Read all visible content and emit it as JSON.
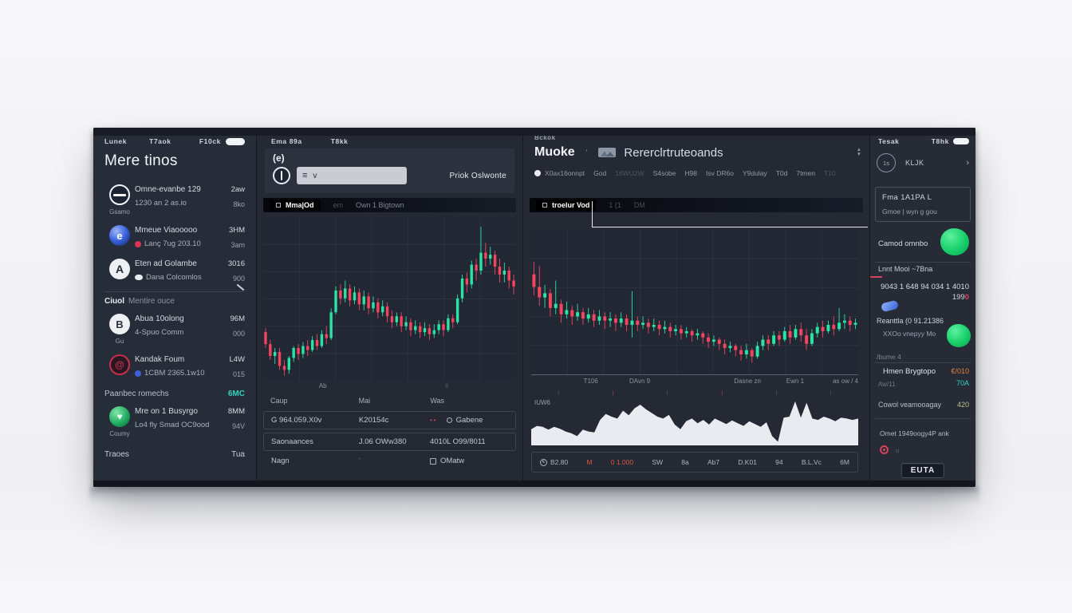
{
  "colors": {
    "up": "#2be3a4",
    "down": "#f4455e",
    "teal": "#2fd3c0",
    "green_blob": "#1fd873",
    "orange": "#e2813a",
    "red": "#d5455a",
    "blue": "#3a62d8",
    "panel_bg": "#242933"
  },
  "icons": {
    "swirl": "e",
    "triangle": "A",
    "sketch": "B",
    "dragon": "@",
    "leaf": "♥",
    "list": "≡",
    "filter": "v",
    "arrow": "›",
    "sort_up": "▲",
    "sort_down": "▼",
    "coin": "€",
    "tick": "|"
  },
  "left": {
    "tabs": [
      "Lunek",
      "T7aok",
      "F10ck"
    ],
    "title": "Mere tinos",
    "items": [
      {
        "sub": "Gsamo",
        "line1": "Omne-evanbe 129",
        "line2": "1230 an 2 as.io",
        "v1": "2aw",
        "v2": "8ko"
      },
      {
        "sub": "",
        "line1": "Mmeue Viaooooo",
        "line2": "Lanç 7ug 203.10",
        "v1": "3HM",
        "v2": "3am"
      },
      {
        "sub": "",
        "line1": "Eten ad Golambe",
        "line2": "Dana Colcomlos",
        "v1": "3016",
        "v2": "900"
      },
      {
        "sub": "Gu",
        "line1": "Abua 10olong",
        "line2": "4-Spuo Comm",
        "v1": "96M",
        "v2": "000"
      },
      {
        "sub": "",
        "line1": "Kandak Foum",
        "line2": "1CBM 2365.1w10",
        "v1": "L4W",
        "v2": "015"
      },
      {
        "sub": "Coumy",
        "line1": "Mre on 1 Busyrgo",
        "line2": "Lo4 fly Smad OC9ood",
        "v1": "8MM",
        "v2": "94V"
      }
    ],
    "section_bold": "Ciuol",
    "section_rest": "Mentire ouce",
    "metric_label": "Paanbec romechs",
    "metric_value": "6MC",
    "footer_label": "Traoes",
    "footer_value": "Tua"
  },
  "market": {
    "tabs": [
      "Ema 89a",
      "T8kk"
    ],
    "avatar": "(e)",
    "hint": "Priok Oslwonte",
    "toolbar": {
      "pill": "Mma|Od",
      "item1": "em",
      "item2": "Own 1 Bigtown"
    },
    "axis": [
      "Ab",
      "il"
    ],
    "table": {
      "headers": [
        "Caup",
        "Mai",
        "Was"
      ],
      "rows": [
        {
          "c1": "G 964.059.X0v",
          "c2": "K20154c",
          "c3": "Gabene"
        },
        {
          "c1": "Saonaances",
          "c2": "J.06 OWw380",
          "c3": "4010L O99/8011"
        },
        {
          "c1": "Nagn",
          "c2": "'",
          "c3": "OMatw"
        }
      ]
    }
  },
  "overview": {
    "mini": "Bckok",
    "title": "Muoke",
    "caret": "'",
    "subtitle": "Rererclrtruteoands",
    "stats": [
      "X0ax16onnpt",
      "God",
      "16WU2W",
      "S4sobe",
      "H98",
      "Isv DR6o",
      "Y9dulay",
      "T0d",
      "7tmen",
      "T10"
    ],
    "toolbar": {
      "pill": "troelur Vod",
      "a": "1 (1",
      "b": "DM"
    },
    "axis": [
      "T106",
      "DAvn 9",
      "Dasne zn",
      "Ewn 1",
      "as ow / 4"
    ],
    "area_label": "IUW6",
    "status": [
      "B2.80",
      "M",
      "0 1.000",
      "SW",
      "8a",
      "Ab7",
      "D.K01",
      "94",
      "B.L.Vc",
      "6M"
    ]
  },
  "side": {
    "tabs": [
      "Tesak",
      "T8hk"
    ],
    "pair": {
      "badge": "1s",
      "label": "KLJK"
    },
    "box": {
      "line1": "Fma 1A1PA L",
      "line2": "Gmoe | wyn g gou"
    },
    "toggle_label": "Camod omnbo",
    "header": "Lnnt Mooi ~7Bna",
    "num_line": "9043 1 648 94 034 1 4010",
    "num_sub": "199",
    "num_sub_red": "0",
    "addr": "Reanttla (0 91.21386",
    "green_label": "XXOo vnepyy Mo",
    "volume": "/bume 4",
    "row1": {
      "label": "Hmen Brygtopo",
      "value": "€/010",
      "sub": "70A",
      "faint": "Aw/11"
    },
    "row2": {
      "label": "Cowol veamooagay",
      "value": "420"
    },
    "note": "Omet 1949oogy4P ank",
    "note_sub": "u",
    "button": "EUTA"
  },
  "chart_data": [
    {
      "type": "candlestick",
      "name": "market-main-chart",
      "up_color": "#2be3a4",
      "down_color": "#f4455e",
      "gridx": 6,
      "gridy": 5,
      "band": [
        0.06,
        0.97
      ],
      "candles": [
        [
          34,
          28,
          26,
          36
        ],
        [
          28,
          22,
          20,
          30
        ],
        [
          22,
          24,
          18,
          26
        ],
        [
          24,
          17,
          15,
          26
        ],
        [
          17,
          15,
          12,
          20
        ],
        [
          15,
          21,
          13,
          22
        ],
        [
          21,
          26,
          19,
          27
        ],
        [
          26,
          23,
          20,
          28
        ],
        [
          23,
          27,
          21,
          29
        ],
        [
          27,
          25,
          22,
          30
        ],
        [
          25,
          30,
          24,
          32
        ],
        [
          30,
          27,
          25,
          33
        ],
        [
          27,
          33,
          26,
          35
        ],
        [
          33,
          31,
          28,
          37
        ],
        [
          31,
          44,
          30,
          46
        ],
        [
          44,
          55,
          43,
          57
        ],
        [
          55,
          51,
          48,
          58
        ],
        [
          51,
          56,
          49,
          60
        ],
        [
          56,
          50,
          47,
          58
        ],
        [
          50,
          54,
          48,
          57
        ],
        [
          54,
          48,
          45,
          56
        ],
        [
          48,
          52,
          45,
          55
        ],
        [
          52,
          46,
          43,
          54
        ],
        [
          46,
          49,
          44,
          52
        ],
        [
          49,
          44,
          41,
          51
        ],
        [
          44,
          47,
          42,
          50
        ],
        [
          47,
          42,
          39,
          49
        ],
        [
          42,
          39,
          36,
          45
        ],
        [
          39,
          42,
          37,
          44
        ],
        [
          42,
          37,
          34,
          44
        ],
        [
          37,
          39,
          35,
          42
        ],
        [
          39,
          35,
          32,
          41
        ],
        [
          35,
          37,
          33,
          40
        ],
        [
          37,
          34,
          31,
          39
        ],
        [
          34,
          36,
          32,
          39
        ],
        [
          36,
          33,
          30,
          38
        ],
        [
          33,
          35,
          31,
          38
        ],
        [
          35,
          38,
          33,
          40
        ],
        [
          38,
          35,
          32,
          40
        ],
        [
          35,
          41,
          34,
          43
        ],
        [
          41,
          39,
          36,
          43
        ],
        [
          39,
          51,
          38,
          53
        ],
        [
          51,
          61,
          49,
          63
        ],
        [
          61,
          58,
          54,
          64
        ],
        [
          58,
          68,
          56,
          70
        ],
        [
          68,
          65,
          60,
          71
        ],
        [
          65,
          74,
          63,
          87
        ],
        [
          74,
          71,
          67,
          79
        ],
        [
          71,
          73,
          68,
          77
        ],
        [
          73,
          67,
          63,
          75
        ],
        [
          67,
          63,
          59,
          71
        ],
        [
          63,
          65,
          59,
          69
        ],
        [
          65,
          60,
          56,
          67
        ],
        [
          60,
          57,
          53,
          63
        ]
      ]
    },
    {
      "type": "candlestick",
      "name": "overview-chart",
      "up_color": "#2be3a4",
      "down_color": "#f4455e",
      "gridx": 8,
      "gridy": 4,
      "band": [
        0.22,
        0.92
      ],
      "candles": [
        [
          60,
          54,
          50,
          66
        ],
        [
          54,
          49,
          45,
          64
        ],
        [
          49,
          51,
          44,
          55
        ],
        [
          51,
          44,
          40,
          53
        ],
        [
          44,
          46,
          41,
          57
        ],
        [
          46,
          41,
          37,
          48
        ],
        [
          41,
          43,
          39,
          47
        ],
        [
          43,
          40,
          36,
          45
        ],
        [
          40,
          42,
          38,
          46
        ],
        [
          42,
          39,
          36,
          44
        ],
        [
          39,
          41,
          37,
          44
        ],
        [
          41,
          38,
          35,
          43
        ],
        [
          38,
          40,
          36,
          43
        ],
        [
          40,
          38,
          34,
          42
        ],
        [
          38,
          39,
          35,
          42
        ],
        [
          39,
          37,
          33,
          41
        ],
        [
          37,
          39,
          35,
          42
        ],
        [
          39,
          36,
          33,
          41
        ],
        [
          36,
          38,
          30,
          52
        ],
        [
          38,
          36,
          33,
          40
        ],
        [
          36,
          37,
          34,
          40
        ],
        [
          37,
          35,
          32,
          39
        ],
        [
          35,
          36,
          33,
          39
        ],
        [
          36,
          34,
          31,
          38
        ],
        [
          34,
          35,
          32,
          38
        ],
        [
          35,
          33,
          30,
          37
        ],
        [
          33,
          34,
          31,
          36
        ],
        [
          34,
          32,
          29,
          36
        ],
        [
          32,
          33,
          30,
          35
        ],
        [
          33,
          31,
          28,
          34
        ],
        [
          31,
          32,
          29,
          34
        ],
        [
          32,
          30,
          27,
          33
        ],
        [
          30,
          28,
          25,
          32
        ],
        [
          28,
          29,
          26,
          31
        ],
        [
          29,
          27,
          24,
          30
        ],
        [
          27,
          25,
          22,
          29
        ],
        [
          25,
          26,
          23,
          28
        ],
        [
          26,
          24,
          21,
          27
        ],
        [
          24,
          22,
          19,
          26
        ],
        [
          22,
          24,
          20,
          27
        ],
        [
          24,
          21,
          18,
          25
        ],
        [
          21,
          26,
          20,
          28
        ],
        [
          26,
          29,
          24,
          31
        ],
        [
          29,
          27,
          24,
          31
        ],
        [
          27,
          31,
          26,
          33
        ],
        [
          31,
          29,
          26,
          33
        ],
        [
          29,
          33,
          28,
          35
        ],
        [
          33,
          30,
          27,
          36
        ],
        [
          30,
          34,
          29,
          36
        ],
        [
          34,
          31,
          28,
          37
        ],
        [
          31,
          27,
          24,
          34
        ],
        [
          27,
          32,
          26,
          34
        ],
        [
          32,
          35,
          30,
          37
        ],
        [
          35,
          33,
          30,
          38
        ],
        [
          33,
          36,
          32,
          38
        ],
        [
          36,
          34,
          31,
          40
        ],
        [
          34,
          37,
          33,
          44
        ],
        [
          37,
          38,
          34,
          41
        ],
        [
          38,
          36,
          33,
          40
        ],
        [
          36,
          37,
          34,
          39
        ]
      ]
    },
    {
      "type": "area",
      "name": "volume-profile",
      "fill": "#e9ebf0",
      "values": [
        35,
        42,
        40,
        34,
        40,
        36,
        30,
        26,
        20,
        34,
        30,
        28,
        55,
        68,
        62,
        58,
        75,
        65,
        80,
        88,
        78,
        70,
        62,
        58,
        66,
        45,
        35,
        52,
        58,
        48,
        55,
        45,
        58,
        52,
        46,
        54,
        48,
        42,
        52,
        46,
        40,
        50,
        20,
        8,
        60,
        62,
        95,
        60,
        92,
        58,
        55,
        62,
        58,
        52,
        60,
        58,
        55,
        58
      ]
    }
  ]
}
